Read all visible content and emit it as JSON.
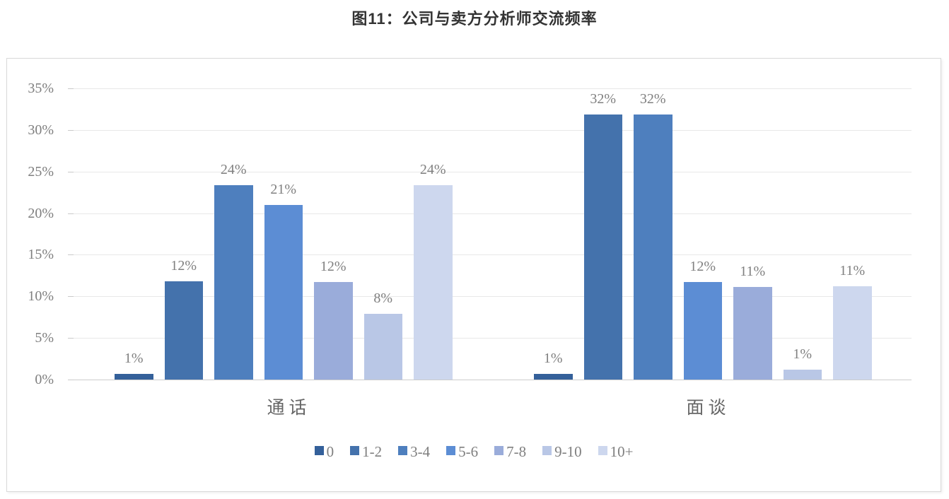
{
  "title": "图11：公司与卖方分析师交流频率",
  "chart_data": {
    "type": "bar",
    "title": "图11：公司与卖方分析师交流频率",
    "categories": [
      "通话",
      "面谈"
    ],
    "xlabel": "",
    "ylabel": "",
    "ylim": [
      0,
      35
    ],
    "grid": true,
    "legend_position": "bottom",
    "y_ticks": [
      {
        "value": 0,
        "label": "0%"
      },
      {
        "value": 5,
        "label": "5%"
      },
      {
        "value": 10,
        "label": "10%"
      },
      {
        "value": 15,
        "label": "15%"
      },
      {
        "value": 20,
        "label": "20%"
      },
      {
        "value": 25,
        "label": "25%"
      },
      {
        "value": 30,
        "label": "30%"
      },
      {
        "value": 35,
        "label": "35%"
      }
    ],
    "series": [
      {
        "name": "0",
        "color": "#34609a",
        "values": [
          1,
          1
        ],
        "labels": [
          "1%",
          "1%"
        ],
        "bar_heights_pct": [
          0.7,
          0.7
        ]
      },
      {
        "name": "1-2",
        "color": "#4472ac",
        "values": [
          12,
          32
        ],
        "labels": [
          "12%",
          "32%"
        ],
        "bar_heights_pct": [
          11.8,
          31.9
        ]
      },
      {
        "name": "3-4",
        "color": "#4e7fbe",
        "values": [
          24,
          32
        ],
        "labels": [
          "24%",
          "32%"
        ],
        "bar_heights_pct": [
          23.4,
          31.9
        ]
      },
      {
        "name": "5-6",
        "color": "#5c8dd4",
        "values": [
          21,
          12
        ],
        "labels": [
          "21%",
          "12%"
        ],
        "bar_heights_pct": [
          21.0,
          11.7
        ]
      },
      {
        "name": "7-8",
        "color": "#9aacda",
        "values": [
          12,
          11
        ],
        "labels": [
          "12%",
          "11%"
        ],
        "bar_heights_pct": [
          11.7,
          11.1
        ]
      },
      {
        "name": "9-10",
        "color": "#b9c7e6",
        "values": [
          8,
          1
        ],
        "labels": [
          "8%",
          "1%"
        ],
        "bar_heights_pct": [
          7.9,
          1.2
        ]
      },
      {
        "name": "10+",
        "color": "#cdd7ee",
        "values": [
          24,
          11
        ],
        "labels": [
          "24%",
          "11%"
        ],
        "bar_heights_pct": [
          23.4,
          11.2
        ]
      }
    ]
  }
}
